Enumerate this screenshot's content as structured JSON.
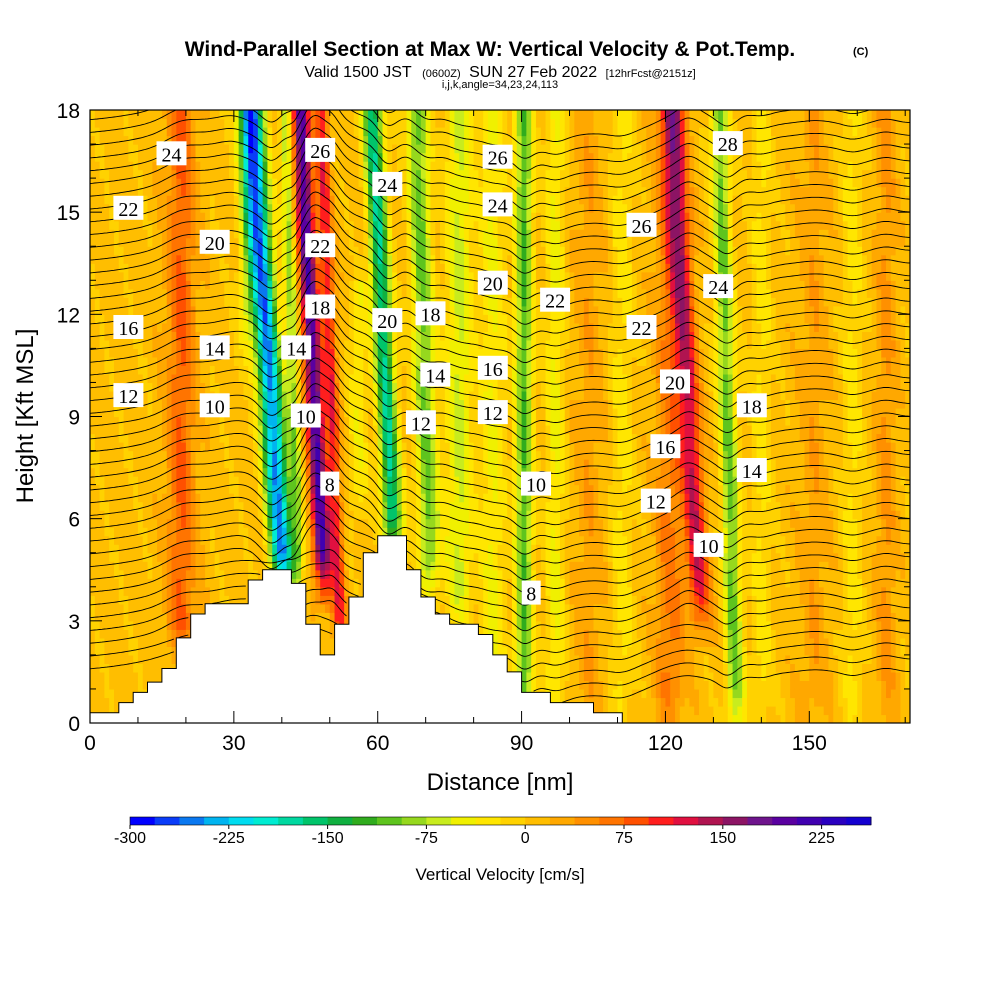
{
  "chart_data": {
    "type": "heatmap",
    "title": {
      "main": "Wind-Parallel Section at Max W: Vertical Velocity & Pot.Temp.",
      "copyright": "(C)",
      "valid_prefix": "Valid 1500 JST",
      "utc_time": "(0600Z)",
      "valid_date": "SUN 27 Feb 2022",
      "forecast": "[12hrFcst@2151z]",
      "section": "i,j,k,angle=34,23,24,113"
    },
    "x_axis": {
      "label": "Distance [nm]",
      "range": [
        0,
        171
      ],
      "ticks": [
        0,
        30,
        60,
        90,
        120,
        150
      ]
    },
    "y_axis": {
      "label": "Height [Kft MSL]",
      "range": [
        0,
        18
      ],
      "ticks": [
        0,
        3,
        6,
        9,
        12,
        15,
        18
      ]
    },
    "colorbar": {
      "label": "Vertical Velocity [cm/s]",
      "range": [
        -300,
        262.5
      ],
      "step": 18.75,
      "tick_values": [
        -300,
        -225,
        -150,
        -75,
        0,
        75,
        150,
        225
      ],
      "tick_labels": [
        "-300",
        "-225",
        "-150",
        "-75",
        "0",
        "75",
        "150",
        "225"
      ],
      "colors": [
        "#0000ff",
        "#0a3cf8",
        "#0a78f0",
        "#00b4f0",
        "#00dcf0",
        "#00ecd2",
        "#00d8a0",
        "#00c46a",
        "#10b040",
        "#30ac1e",
        "#5ec41e",
        "#96d81e",
        "#c8ec1e",
        "#f0f000",
        "#ffe600",
        "#ffd200",
        "#ffbe00",
        "#ffa800",
        "#ff9000",
        "#ff7400",
        "#ff5000",
        "#ff1e1e",
        "#e01040",
        "#b01450",
        "#8c1464",
        "#6e148c",
        "#5a00a0",
        "#4000b0",
        "#2a00c0",
        "#1400d0"
      ]
    },
    "velocity_bands": [
      {
        "x": 19,
        "w": 70,
        "width": 3.0,
        "tilt": 0.0,
        "z0": 2,
        "z1": 18
      },
      {
        "x": 33,
        "w": -60,
        "width": 2.0,
        "tilt": 0.0,
        "z0": 11,
        "z1": 18
      },
      {
        "x": 38,
        "w": -260,
        "width": 2.4,
        "tilt": -0.5,
        "z0": 4,
        "z1": 18
      },
      {
        "x": 42.5,
        "w": -90,
        "width": 1.2,
        "tilt": -0.2,
        "z0": 4,
        "z1": 18
      },
      {
        "x": 47,
        "w": 200,
        "width": 1.8,
        "tilt": -0.35,
        "z0": 4,
        "z1": 18
      },
      {
        "x": 50.5,
        "w": 100,
        "width": 1.4,
        "tilt": -0.25,
        "z0": 2,
        "z1": 18
      },
      {
        "x": 62,
        "w": -180,
        "width": 2.0,
        "tilt": -0.35,
        "z0": 5,
        "z1": 18
      },
      {
        "x": 56,
        "w": -40,
        "width": 2.0,
        "tilt": 0.0,
        "z0": 6,
        "z1": 12
      },
      {
        "x": 70,
        "w": -110,
        "width": 2.2,
        "tilt": -0.2,
        "z0": 4,
        "z1": 18
      },
      {
        "x": 77,
        "w": -70,
        "width": 2.8,
        "tilt": 0.0,
        "z0": 3,
        "z1": 18
      },
      {
        "x": 84,
        "w": -50,
        "width": 2.5,
        "tilt": 0.0,
        "z0": 0,
        "z1": 18
      },
      {
        "x": 90.5,
        "w": -120,
        "width": 1.8,
        "tilt": 0.0,
        "z0": 0,
        "z1": 18
      },
      {
        "x": 97,
        "w": -50,
        "width": 2.0,
        "tilt": 0.0,
        "z0": 0,
        "z1": 18
      },
      {
        "x": 104,
        "w": 25,
        "width": 3.0,
        "tilt": 0.0,
        "z0": 0,
        "z1": 18
      },
      {
        "x": 111,
        "w": -35,
        "width": 2.2,
        "tilt": 0.0,
        "z0": 0,
        "z1": 18
      },
      {
        "x": 121,
        "w": 55,
        "width": 3.0,
        "tilt": 0.0,
        "z0": 0,
        "z1": 18
      },
      {
        "x": 125,
        "w": 120,
        "width": 2.2,
        "tilt": -0.4,
        "z0": 3,
        "z1": 18
      },
      {
        "x": 133,
        "w": -110,
        "width": 1.8,
        "tilt": -0.2,
        "z0": 0,
        "z1": 18
      },
      {
        "x": 140,
        "w": -35,
        "width": 2.0,
        "tilt": 0.0,
        "z0": 0,
        "z1": 18
      },
      {
        "x": 151,
        "w": 25,
        "width": 3.0,
        "tilt": 0.0,
        "z0": 0,
        "z1": 18
      },
      {
        "x": 159,
        "w": -35,
        "width": 2.0,
        "tilt": 0.0,
        "z0": 0,
        "z1": 18
      },
      {
        "x": 166,
        "w": 35,
        "width": 2.0,
        "tilt": 0.0,
        "z0": 0,
        "z1": 18
      }
    ],
    "terrain": {
      "x": [
        0,
        6,
        9,
        12,
        15,
        18,
        21,
        24,
        27,
        30,
        33,
        36,
        39,
        42,
        45,
        48,
        51,
        54,
        57,
        60,
        63,
        66,
        69,
        72,
        75,
        78,
        81,
        84,
        87,
        90,
        93,
        96,
        99,
        102,
        105,
        108
      ],
      "height": [
        0.3,
        0.6,
        0.9,
        1.2,
        1.6,
        2.5,
        3.2,
        3.5,
        3.5,
        3.5,
        4.2,
        4.5,
        4.5,
        4.1,
        2.9,
        2.0,
        2.9,
        3.7,
        5.0,
        5.5,
        5.5,
        4.5,
        3.7,
        3.2,
        2.9,
        2.9,
        2.6,
        2.0,
        1.5,
        0.9,
        0.9,
        0.6,
        0.6,
        0.6,
        0.3,
        0.3
      ]
    },
    "potential_temperature": {
      "levels": [
        8,
        10,
        12,
        14,
        16,
        18,
        20,
        22,
        24,
        26,
        28
      ],
      "labels": [
        {
          "text": "24",
          "x": 17,
          "z": 16.7
        },
        {
          "text": "22",
          "x": 8,
          "z": 15.1
        },
        {
          "text": "20",
          "x": 26,
          "z": 14.1
        },
        {
          "text": "16",
          "x": 8,
          "z": 11.6
        },
        {
          "text": "14",
          "x": 26,
          "z": 11.0
        },
        {
          "text": "12",
          "x": 8,
          "z": 9.6
        },
        {
          "text": "10",
          "x": 26,
          "z": 9.3
        },
        {
          "text": "26",
          "x": 48,
          "z": 16.8
        },
        {
          "text": "22",
          "x": 48,
          "z": 14.0
        },
        {
          "text": "18",
          "x": 48,
          "z": 12.2
        },
        {
          "text": "14",
          "x": 43,
          "z": 11.0
        },
        {
          "text": "10",
          "x": 45,
          "z": 9.0
        },
        {
          "text": "8",
          "x": 50,
          "z": 7.0
        },
        {
          "text": "24",
          "x": 62,
          "z": 15.8
        },
        {
          "text": "20",
          "x": 62,
          "z": 11.8
        },
        {
          "text": "18",
          "x": 71,
          "z": 12.0
        },
        {
          "text": "14",
          "x": 72,
          "z": 10.2
        },
        {
          "text": "12",
          "x": 69,
          "z": 8.8
        },
        {
          "text": "26",
          "x": 85,
          "z": 16.6
        },
        {
          "text": "24",
          "x": 85,
          "z": 15.2
        },
        {
          "text": "20",
          "x": 84,
          "z": 12.9
        },
        {
          "text": "16",
          "x": 84,
          "z": 10.4
        },
        {
          "text": "12",
          "x": 84,
          "z": 9.1
        },
        {
          "text": "22",
          "x": 97,
          "z": 12.4
        },
        {
          "text": "10",
          "x": 93,
          "z": 7.0
        },
        {
          "text": "8",
          "x": 92,
          "z": 3.8
        },
        {
          "text": "26",
          "x": 115,
          "z": 14.6
        },
        {
          "text": "22",
          "x": 115,
          "z": 11.6
        },
        {
          "text": "20",
          "x": 122,
          "z": 10.0
        },
        {
          "text": "16",
          "x": 120,
          "z": 8.1
        },
        {
          "text": "12",
          "x": 118,
          "z": 6.5
        },
        {
          "text": "10",
          "x": 129,
          "z": 5.2
        },
        {
          "text": "28",
          "x": 133,
          "z": 17.0
        },
        {
          "text": "24",
          "x": 131,
          "z": 12.8
        },
        {
          "text": "18",
          "x": 138,
          "z": 9.3
        },
        {
          "text": "14",
          "x": 138,
          "z": 7.4
        }
      ]
    },
    "grid": false,
    "legend": "bottom (horizontal colorbar)"
  }
}
